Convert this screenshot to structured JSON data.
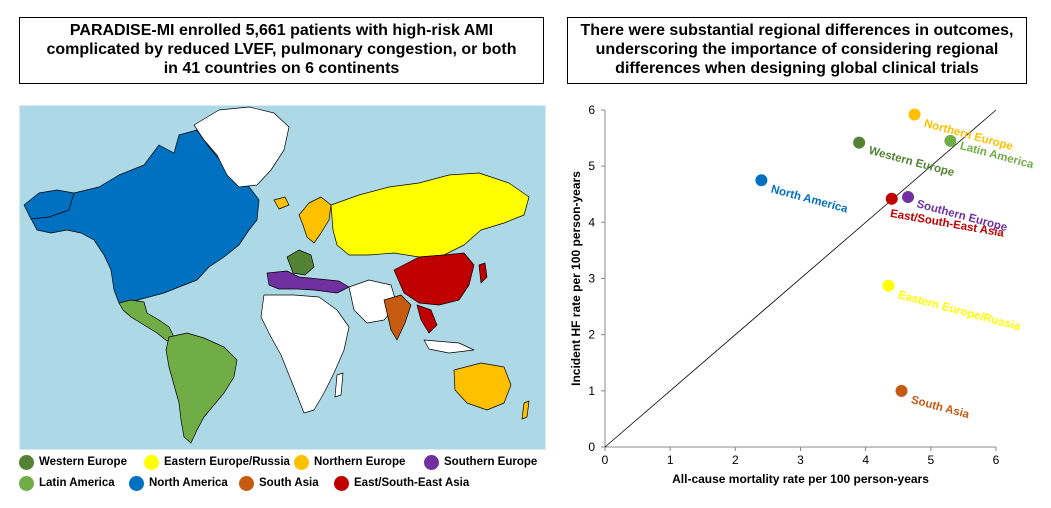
{
  "left_title": [
    "PARADISE-MI  enrolled 5,661 patients with high-risk AMI",
    "complicated by reduced LVEF, pulmonary congestion, or both",
    "in 41 countries on 6 continents"
  ],
  "right_title": [
    "There were substantial regional differences in outcomes,",
    "underscoring the importance of considering regional",
    "differences when designing global clinical trials"
  ],
  "map": {
    "ocean_color": "#add8e6",
    "regions": [
      {
        "name": "Western Europe",
        "color": "#548235"
      },
      {
        "name": "Eastern Europe/Russia",
        "color": "#ffff00"
      },
      {
        "name": "Northern Europe",
        "color": "#ffc000"
      },
      {
        "name": "Southern Europe",
        "color": "#7030a0"
      },
      {
        "name": "Latin America",
        "color": "#70ad47"
      },
      {
        "name": "North America",
        "color": "#0070c0"
      },
      {
        "name": "South Asia",
        "color": "#c55a11"
      },
      {
        "name": "East/South-East Asia",
        "color": "#c00000"
      }
    ]
  },
  "chart_data": {
    "type": "scatter",
    "xlabel": "All-cause mortality rate per 100 person-years",
    "ylabel": "Incident HF rate per 100 person-years",
    "xlim": [
      0,
      6
    ],
    "ylim": [
      0,
      6
    ],
    "xticks": [
      0,
      1,
      2,
      3,
      4,
      5,
      6
    ],
    "yticks": [
      0,
      1,
      2,
      3,
      4,
      5,
      6
    ],
    "identity_line": true,
    "grid": false,
    "points": [
      {
        "label": "Northern Europe",
        "x": 4.75,
        "y": 5.92,
        "color": "#ffc000"
      },
      {
        "label": "Western Europe",
        "x": 3.9,
        "y": 5.42,
        "color": "#548235"
      },
      {
        "label": "Latin America",
        "x": 5.3,
        "y": 5.45,
        "color": "#70ad47"
      },
      {
        "label": "North America",
        "x": 2.4,
        "y": 4.75,
        "color": "#0070c0"
      },
      {
        "label": "Southern Europe",
        "x": 4.65,
        "y": 4.45,
        "color": "#7030a0"
      },
      {
        "label": "East/South-East Asia",
        "x": 4.4,
        "y": 4.42,
        "color": "#c00000"
      },
      {
        "label": "Eastern Europe/Russia",
        "x": 4.35,
        "y": 2.87,
        "color": "#ffff00"
      },
      {
        "label": "South Asia",
        "x": 4.55,
        "y": 1.0,
        "color": "#c55a11"
      }
    ]
  }
}
